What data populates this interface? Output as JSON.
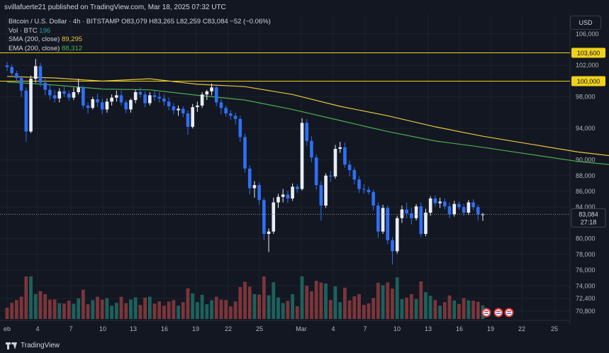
{
  "header": {
    "publisher": "svillafuerte21 published on TradingView.com, Mar 18, 2025 07:32 UTC"
  },
  "legend": {
    "symbol": "Bitcoin / U.S. Dollar · 4h · BITSTAMP",
    "ohlc": "O83,079  H83,265  L82,259  C83,084  −52 (−0.06%)",
    "vol_label": "Vol · BTC",
    "vol_value": "196",
    "sma_label": "SMA (200, close)",
    "sma_value": "89,295",
    "ema_label": "EMA (200, close)",
    "ema_value": "88,312"
  },
  "currency_button": "USD",
  "brand": "TradingView",
  "colors": {
    "background": "#131722",
    "up": "#e9edf5",
    "down": "#2f6ff5",
    "sma": "#e7c53a",
    "ema": "#4caf50",
    "level": "#f0d21b",
    "vol_up": "#1f6f66",
    "vol_down": "#8e3b3e",
    "grid": "#1e222d"
  },
  "chart_data": {
    "type": "candlestick",
    "title": "Bitcoin / U.S. Dollar · 4h · BITSTAMP",
    "xlabel": "",
    "ylabel": "USD",
    "x_ticks": [
      "eb",
      "4",
      "7",
      "10",
      "13",
      "16",
      "19",
      "22",
      "25",
      "Mar",
      "4",
      "7",
      "10",
      "13",
      "16",
      "19",
      "22",
      "25"
    ],
    "y_ticks": [
      "106,000",
      "102,000",
      "98,000",
      "94,000",
      "90,000",
      "88,000",
      "86,000",
      "84,000",
      "80,000",
      "78,000",
      "76,000",
      "74,000",
      "72,400",
      "70,800"
    ],
    "ylim": [
      69800,
      108500
    ],
    "grid": true,
    "last_price": "83,084",
    "countdown": "27:18",
    "levels": [
      {
        "price": 103600,
        "label": "103,600"
      },
      {
        "price": 100000,
        "label": "100,000"
      }
    ],
    "sma_points": [
      [
        0,
        100600
      ],
      [
        10,
        100400
      ],
      [
        20,
        100000
      ],
      [
        30,
        100300
      ],
      [
        40,
        99600
      ],
      [
        50,
        99300
      ],
      [
        60,
        98300
      ],
      [
        70,
        96800
      ],
      [
        80,
        95600
      ],
      [
        90,
        94200
      ],
      [
        100,
        93000
      ],
      [
        110,
        92000
      ],
      [
        120,
        91000
      ],
      [
        130,
        90300
      ],
      [
        140,
        89600
      ],
      [
        145,
        89295
      ]
    ],
    "ema_points": [
      [
        0,
        99900
      ],
      [
        10,
        99500
      ],
      [
        20,
        99000
      ],
      [
        30,
        98900
      ],
      [
        40,
        98200
      ],
      [
        50,
        97600
      ],
      [
        60,
        96400
      ],
      [
        70,
        95000
      ],
      [
        80,
        93600
      ],
      [
        90,
        92400
      ],
      [
        100,
        91600
      ],
      [
        110,
        90700
      ],
      [
        120,
        89800
      ],
      [
        130,
        89200
      ],
      [
        140,
        88600
      ],
      [
        145,
        88312
      ]
    ],
    "candles": [
      [
        102000,
        102400,
        101300,
        101800
      ],
      [
        101800,
        102100,
        100700,
        101000
      ],
      [
        101000,
        101300,
        99900,
        100400
      ],
      [
        100400,
        100700,
        98000,
        98800
      ],
      [
        98800,
        99200,
        92300,
        93600
      ],
      [
        93600,
        100700,
        93400,
        100300
      ],
      [
        100300,
        102800,
        99800,
        101900
      ],
      [
        101900,
        102300,
        99300,
        99800
      ],
      [
        99800,
        100300,
        98200,
        98900
      ],
      [
        98900,
        99600,
        97600,
        98200
      ],
      [
        98200,
        98900,
        97300,
        97800
      ],
      [
        97800,
        99100,
        97300,
        98700
      ],
      [
        98700,
        99300,
        98000,
        98400
      ],
      [
        98400,
        98800,
        97500,
        97900
      ],
      [
        97900,
        99200,
        97600,
        98600
      ],
      [
        98600,
        100300,
        98300,
        99200
      ],
      [
        99200,
        99400,
        96500,
        96900
      ],
      [
        96900,
        97300,
        95900,
        96600
      ],
      [
        96600,
        98000,
        96400,
        97700
      ],
      [
        97700,
        98400,
        96700,
        97300
      ],
      [
        97300,
        97800,
        95800,
        96400
      ],
      [
        96400,
        97800,
        96000,
        97400
      ],
      [
        97400,
        98300,
        96900,
        97900
      ],
      [
        97900,
        98800,
        97400,
        98200
      ],
      [
        98200,
        98800,
        96900,
        97300
      ],
      [
        97300,
        97600,
        95900,
        96400
      ],
      [
        96400,
        97800,
        96000,
        97600
      ],
      [
        97600,
        98900,
        97200,
        98600
      ],
      [
        98600,
        99200,
        97900,
        98300
      ],
      [
        98300,
        98700,
        96700,
        97200
      ],
      [
        97200,
        98600,
        96900,
        98200
      ],
      [
        98200,
        98900,
        97500,
        98000
      ],
      [
        98000,
        98600,
        97300,
        97800
      ],
      [
        97800,
        98300,
        96900,
        97400
      ],
      [
        97400,
        97900,
        96300,
        96800
      ],
      [
        96800,
        97200,
        95800,
        96300
      ],
      [
        96300,
        96900,
        95600,
        96500
      ],
      [
        96500,
        96800,
        95400,
        95900
      ],
      [
        95900,
        96300,
        93200,
        94200
      ],
      [
        94200,
        97100,
        94000,
        96700
      ],
      [
        96700,
        97400,
        96100,
        96900
      ],
      [
        96900,
        98600,
        96600,
        98300
      ],
      [
        98300,
        98900,
        97600,
        98700
      ],
      [
        98700,
        99700,
        98200,
        99200
      ],
      [
        99200,
        99600,
        96800,
        97300
      ],
      [
        97300,
        97700,
        95800,
        96600
      ],
      [
        96600,
        96900,
        95500,
        95900
      ],
      [
        95900,
        96300,
        95100,
        95600
      ],
      [
        95600,
        96000,
        94500,
        95200
      ],
      [
        95200,
        95600,
        92300,
        92900
      ],
      [
        92900,
        93300,
        88400,
        88900
      ],
      [
        88900,
        89300,
        85600,
        86400
      ],
      [
        86400,
        87300,
        85200,
        86800
      ],
      [
        86800,
        87100,
        84300,
        84900
      ],
      [
        84900,
        85200,
        79800,
        80600
      ],
      [
        80600,
        81300,
        78300,
        80900
      ],
      [
        80900,
        85200,
        80600,
        84600
      ],
      [
        84600,
        85700,
        83900,
        85300
      ],
      [
        85300,
        86300,
        84600,
        85600
      ],
      [
        85600,
        86100,
        84500,
        85100
      ],
      [
        85100,
        87000,
        84800,
        86600
      ],
      [
        86600,
        86900,
        85800,
        86300
      ],
      [
        86300,
        95300,
        86100,
        94700
      ],
      [
        94700,
        95200,
        91800,
        92400
      ],
      [
        92400,
        93000,
        89700,
        90300
      ],
      [
        90300,
        90700,
        86200,
        86800
      ],
      [
        86800,
        87300,
        82300,
        84200
      ],
      [
        84200,
        88300,
        83900,
        88000
      ],
      [
        88000,
        88600,
        87200,
        87900
      ],
      [
        87900,
        91900,
        87600,
        91400
      ],
      [
        91400,
        92300,
        90900,
        91600
      ],
      [
        91600,
        92200,
        89000,
        89400
      ],
      [
        89400,
        89900,
        87900,
        88700
      ],
      [
        88700,
        89100,
        86900,
        87500
      ],
      [
        87500,
        87900,
        85800,
        86300
      ],
      [
        86300,
        86900,
        85700,
        86200
      ],
      [
        86200,
        86600,
        85600,
        85900
      ],
      [
        85900,
        86200,
        83600,
        84200
      ],
      [
        84200,
        84600,
        80100,
        80900
      ],
      [
        80900,
        84300,
        80600,
        83900
      ],
      [
        83900,
        84200,
        79300,
        79800
      ],
      [
        79800,
        80200,
        76700,
        78400
      ],
      [
        78400,
        82900,
        78100,
        82600
      ],
      [
        82600,
        84200,
        82000,
        83700
      ],
      [
        83700,
        84600,
        82600,
        83200
      ],
      [
        83200,
        83900,
        81800,
        82600
      ],
      [
        82600,
        84400,
        82300,
        84100
      ],
      [
        84100,
        84600,
        80200,
        80600
      ],
      [
        80600,
        83800,
        80300,
        83300
      ],
      [
        83300,
        85400,
        82900,
        85100
      ],
      [
        85100,
        85500,
        84100,
        84500
      ],
      [
        84500,
        85200,
        83900,
        84700
      ],
      [
        84700,
        85100,
        83700,
        84100
      ],
      [
        84100,
        84600,
        82600,
        83100
      ],
      [
        83100,
        84800,
        82800,
        84400
      ],
      [
        84400,
        84700,
        83700,
        84000
      ],
      [
        84000,
        84400,
        82900,
        83300
      ],
      [
        83300,
        84900,
        83000,
        84600
      ],
      [
        84600,
        85000,
        83600,
        84000
      ],
      [
        84000,
        84300,
        82300,
        83079
      ],
      [
        83079,
        83265,
        82259,
        83084
      ]
    ]
  }
}
